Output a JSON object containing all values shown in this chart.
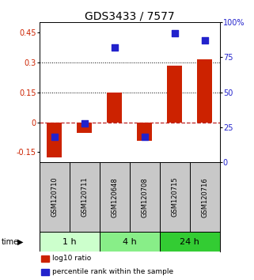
{
  "title": "GDS3433 / 7577",
  "samples": [
    "GSM120710",
    "GSM120711",
    "GSM120648",
    "GSM120708",
    "GSM120715",
    "GSM120716"
  ],
  "log10_ratio": [
    -0.175,
    -0.055,
    0.148,
    -0.095,
    0.285,
    0.315
  ],
  "percentile_rank": [
    0.18,
    0.28,
    0.82,
    0.18,
    0.92,
    0.87
  ],
  "groups": [
    {
      "label": "1 h",
      "samples": [
        0,
        1
      ],
      "color": "#ccffcc"
    },
    {
      "label": "4 h",
      "samples": [
        2,
        3
      ],
      "color": "#88ee88"
    },
    {
      "label": "24 h",
      "samples": [
        4,
        5
      ],
      "color": "#33cc33"
    }
  ],
  "ylim_left": [
    -0.2,
    0.5
  ],
  "ylim_right": [
    0.0,
    1.0
  ],
  "yticks_left": [
    -0.15,
    0.0,
    0.15,
    0.3,
    0.45
  ],
  "ytick_labels_left": [
    "-0.15",
    "0",
    "0.15",
    "0.3",
    "0.45"
  ],
  "yticks_right": [
    0.0,
    0.25,
    0.5,
    0.75,
    1.0
  ],
  "ytick_labels_right": [
    "0",
    "25",
    "50",
    "75",
    "100%"
  ],
  "hlines": [
    0.15,
    0.3
  ],
  "bar_color": "#cc2200",
  "dot_color": "#2222cc",
  "bar_width": 0.5,
  "dot_size": 28,
  "legend_items": [
    "log10 ratio",
    "percentile rank within the sample"
  ],
  "bg_color": "#ffffff",
  "plot_bg": "#ffffff",
  "zero_line_color": "#bb2222",
  "hline_color": "#000000",
  "title_fontsize": 10,
  "tick_fontsize": 7,
  "sample_fontsize": 6,
  "group_fontsize": 8,
  "legend_fontsize": 6.5
}
